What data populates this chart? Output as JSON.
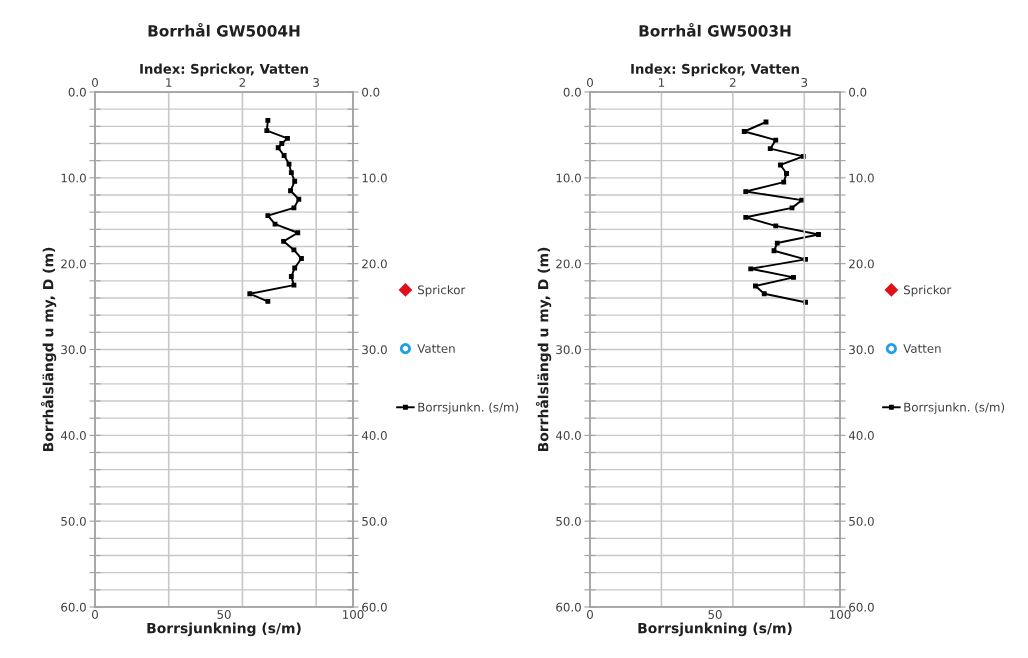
{
  "chart_data": [
    {
      "type": "line",
      "title": "Borrhål GW5004H",
      "xlabel": "Borrsjunkning (s/m)",
      "x2label": "Index: Sprickor, Vatten",
      "ylabel": "Borrhålslängd u my, D (m)",
      "xlim": [
        0,
        100
      ],
      "xticks": [
        0,
        50,
        100
      ],
      "x2lim": [
        0,
        3.5
      ],
      "x2ticks": [
        0,
        1,
        2,
        3
      ],
      "ylim": [
        60,
        0
      ],
      "yticks": [
        {
          "value": 0,
          "label": "0.0"
        },
        {
          "value": 2,
          "label": null
        },
        {
          "value": 4,
          "label": null
        },
        {
          "value": 6,
          "label": null
        },
        {
          "value": 8,
          "label": null
        },
        {
          "value": 10,
          "label": "10.0"
        },
        {
          "value": 12,
          "label": null
        },
        {
          "value": 14,
          "label": null
        },
        {
          "value": 16,
          "label": null
        },
        {
          "value": 18,
          "label": null
        },
        {
          "value": 20,
          "label": "20.0"
        },
        {
          "value": 22,
          "label": null
        },
        {
          "value": 24,
          "label": null
        },
        {
          "value": 26,
          "label": null
        },
        {
          "value": 28,
          "label": null
        },
        {
          "value": 30,
          "label": "30.0"
        },
        {
          "value": 32,
          "label": null
        },
        {
          "value": 34,
          "label": null
        },
        {
          "value": 36,
          "label": null
        },
        {
          "value": 38,
          "label": null
        },
        {
          "value": 40,
          "label": "40.0"
        },
        {
          "value": 42,
          "label": null
        },
        {
          "value": 44,
          "label": null
        },
        {
          "value": 46,
          "label": null
        },
        {
          "value": 48,
          "label": null
        },
        {
          "value": 50,
          "label": "50.0"
        },
        {
          "value": 52,
          "label": null
        },
        {
          "value": 54,
          "label": null
        },
        {
          "value": 56,
          "label": null
        },
        {
          "value": 58,
          "label": null
        },
        {
          "value": 60,
          "label": "60.0"
        }
      ],
      "y2lim": [
        60,
        0
      ],
      "y2ticks": [
        {
          "value": 0,
          "label": "0.0"
        },
        {
          "value": 2,
          "label": null
        },
        {
          "value": 4,
          "label": null
        },
        {
          "value": 6,
          "label": null
        },
        {
          "value": 8,
          "label": null
        },
        {
          "value": 10,
          "label": "10.0"
        },
        {
          "value": 12,
          "label": null
        },
        {
          "value": 14,
          "label": null
        },
        {
          "value": 16,
          "label": null
        },
        {
          "value": 18,
          "label": null
        },
        {
          "value": 20,
          "label": "20.0"
        },
        {
          "value": 22,
          "label": null
        },
        {
          "value": 24,
          "label": null
        },
        {
          "value": 26,
          "label": null
        },
        {
          "value": 28,
          "label": null
        },
        {
          "value": 30,
          "label": "30.0"
        },
        {
          "value": 32,
          "label": null
        },
        {
          "value": 34,
          "label": null
        },
        {
          "value": 36,
          "label": null
        },
        {
          "value": 38,
          "label": null
        },
        {
          "value": 40,
          "label": "40.0"
        },
        {
          "value": 42,
          "label": null
        },
        {
          "value": 44,
          "label": null
        },
        {
          "value": 46,
          "label": null
        },
        {
          "value": 48,
          "label": null
        },
        {
          "value": 50,
          "label": "50.0"
        },
        {
          "value": 52,
          "label": null
        },
        {
          "value": 54,
          "label": null
        },
        {
          "value": 56,
          "label": null
        },
        {
          "value": 58,
          "label": null
        },
        {
          "value": 60,
          "label": "60.0"
        }
      ],
      "grid": true,
      "legend": "right",
      "series": [
        {
          "name": "Sprickor",
          "type": "scatter",
          "marker": "diamond",
          "color": "#e0101a"
        },
        {
          "name": "Vatten",
          "type": "scatter",
          "marker": "circle",
          "color": "#1ea0e6"
        },
        {
          "name": "Borrsjunkn. (s/m)",
          "marker": "square",
          "line_style": "solid",
          "color": "#000000",
          "x": [
            67.0,
            66.6,
            74.6,
            72.4,
            71.0,
            73.3,
            75.2,
            76.1,
            77.4,
            75.8,
            79.0,
            77.1,
            67.0,
            69.8,
            78.6,
            73.1,
            77.1,
            80.0,
            77.4,
            76.1,
            77.1,
            60.0,
            67.0
          ],
          "values": [
            3.3,
            4.5,
            5.4,
            6.0,
            6.5,
            7.4,
            8.4,
            9.4,
            10.4,
            11.5,
            12.5,
            13.5,
            14.4,
            15.4,
            16.4,
            17.4,
            18.4,
            19.4,
            20.5,
            21.5,
            22.5,
            23.5,
            24.4
          ]
        }
      ]
    },
    {
      "type": "line",
      "title": "Borrhål GW5003H",
      "xlabel": "Borrsjunkning (s/m)",
      "x2label": "Index: Sprickor, Vatten",
      "ylabel": "Borrhålslängd u my, D (m)",
      "xlim": [
        0,
        100
      ],
      "xticks": [
        0,
        50,
        100
      ],
      "x2lim": [
        0,
        3.5
      ],
      "x2ticks": [
        0,
        1,
        2,
        3
      ],
      "ylim": [
        60,
        0
      ],
      "yticks": [
        {
          "value": 0,
          "label": "0.0"
        },
        {
          "value": 2,
          "label": null
        },
        {
          "value": 4,
          "label": null
        },
        {
          "value": 6,
          "label": null
        },
        {
          "value": 8,
          "label": null
        },
        {
          "value": 10,
          "label": "10.0"
        },
        {
          "value": 12,
          "label": null
        },
        {
          "value": 14,
          "label": null
        },
        {
          "value": 16,
          "label": null
        },
        {
          "value": 18,
          "label": null
        },
        {
          "value": 20,
          "label": "20.0"
        },
        {
          "value": 22,
          "label": null
        },
        {
          "value": 24,
          "label": null
        },
        {
          "value": 26,
          "label": null
        },
        {
          "value": 28,
          "label": null
        },
        {
          "value": 30,
          "label": "30.0"
        },
        {
          "value": 32,
          "label": null
        },
        {
          "value": 34,
          "label": null
        },
        {
          "value": 36,
          "label": null
        },
        {
          "value": 38,
          "label": null
        },
        {
          "value": 40,
          "label": "40.0"
        },
        {
          "value": 42,
          "label": null
        },
        {
          "value": 44,
          "label": null
        },
        {
          "value": 46,
          "label": null
        },
        {
          "value": 48,
          "label": null
        },
        {
          "value": 50,
          "label": "50.0"
        },
        {
          "value": 52,
          "label": null
        },
        {
          "value": 54,
          "label": null
        },
        {
          "value": 56,
          "label": null
        },
        {
          "value": 58,
          "label": null
        },
        {
          "value": 60,
          "label": "60.0"
        }
      ],
      "y2lim": [
        60,
        0
      ],
      "y2ticks": [
        {
          "value": 0,
          "label": "0.0"
        },
        {
          "value": 2,
          "label": null
        },
        {
          "value": 4,
          "label": null
        },
        {
          "value": 6,
          "label": null
        },
        {
          "value": 8,
          "label": null
        },
        {
          "value": 10,
          "label": "10.0"
        },
        {
          "value": 12,
          "label": null
        },
        {
          "value": 14,
          "label": null
        },
        {
          "value": 16,
          "label": null
        },
        {
          "value": 18,
          "label": null
        },
        {
          "value": 20,
          "label": "20.0"
        },
        {
          "value": 22,
          "label": null
        },
        {
          "value": 24,
          "label": null
        },
        {
          "value": 26,
          "label": null
        },
        {
          "value": 28,
          "label": null
        },
        {
          "value": 30,
          "label": "30.0"
        },
        {
          "value": 32,
          "label": null
        },
        {
          "value": 34,
          "label": null
        },
        {
          "value": 36,
          "label": null
        },
        {
          "value": 38,
          "label": null
        },
        {
          "value": 40,
          "label": "40.0"
        },
        {
          "value": 42,
          "label": null
        },
        {
          "value": 44,
          "label": null
        },
        {
          "value": 46,
          "label": null
        },
        {
          "value": 48,
          "label": null
        },
        {
          "value": 50,
          "label": "50.0"
        },
        {
          "value": 52,
          "label": null
        },
        {
          "value": 54,
          "label": null
        },
        {
          "value": 56,
          "label": null
        },
        {
          "value": 58,
          "label": null
        },
        {
          "value": 60,
          "label": "60.0"
        }
      ],
      "grid": true,
      "legend": "right",
      "series": [
        {
          "name": "Sprickor",
          "type": "scatter",
          "marker": "diamond",
          "color": "#e0101a"
        },
        {
          "name": "Vatten",
          "type": "scatter",
          "marker": "circle",
          "color": "#1ea0e6"
        },
        {
          "name": "Borrsjunkn. (s/m)",
          "marker": "square",
          "line_style": "solid",
          "color": "#000000",
          "x": [
            70.4,
            61.7,
            74.3,
            72.1,
            85.3,
            76.2,
            78.6,
            77.5,
            62.3,
            84.7,
            80.8,
            62.3,
            74.3,
            91.4,
            74.9,
            73.6,
            86.2,
            64.3,
            81.4,
            66.2,
            69.7,
            86.2
          ],
          "values": [
            3.5,
            4.6,
            5.6,
            6.6,
            7.5,
            8.5,
            9.5,
            10.5,
            11.6,
            12.6,
            13.5,
            14.6,
            15.6,
            16.6,
            17.6,
            18.5,
            19.5,
            20.6,
            21.6,
            22.6,
            23.5,
            24.5
          ]
        }
      ]
    }
  ]
}
